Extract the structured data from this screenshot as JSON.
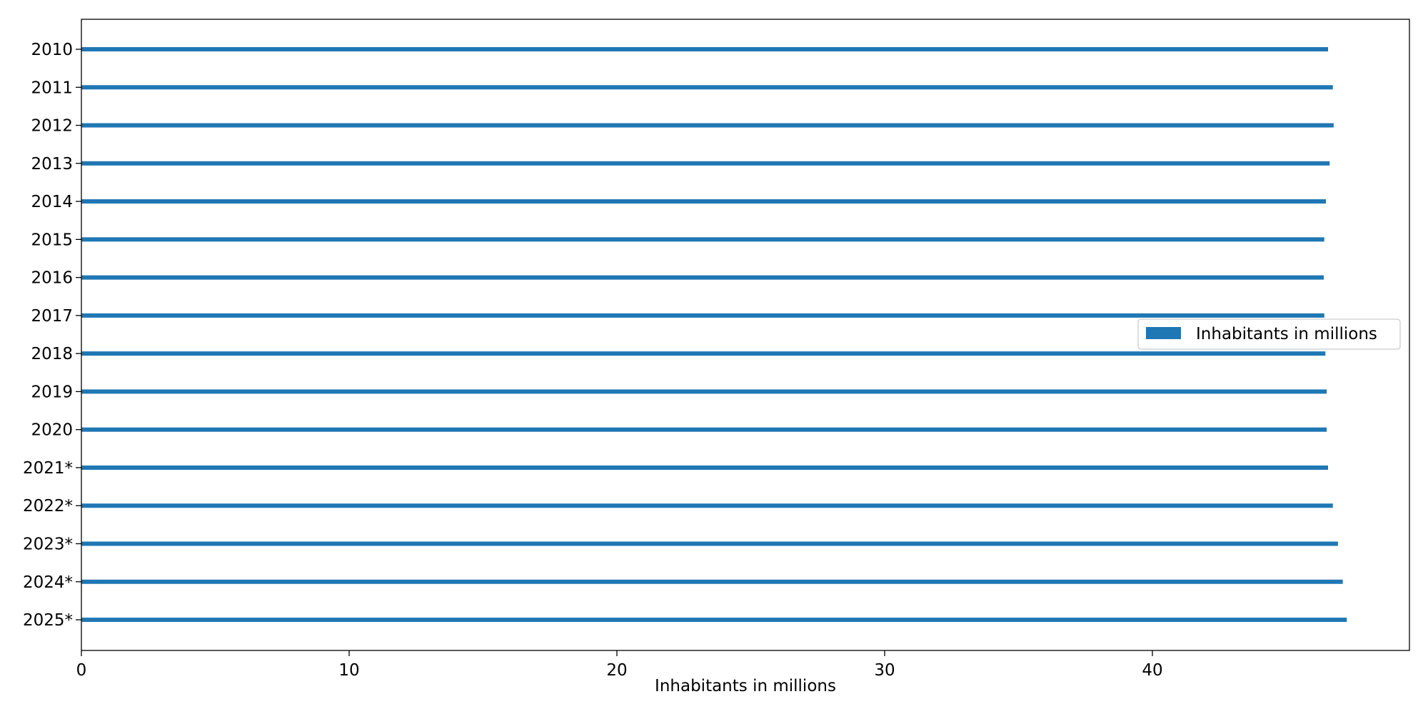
{
  "chart_data": {
    "type": "bar",
    "orientation": "horizontal",
    "title": "",
    "xlabel": "Inhabitants in millions",
    "ylabel": "",
    "xlim": [
      0,
      49.6
    ],
    "x_ticks": [
      0,
      10,
      20,
      30,
      40
    ],
    "grid": false,
    "legend": {
      "position": "center-right",
      "entries": [
        "Inhabitants in millions"
      ]
    },
    "bar_color": "#1f77b4",
    "categories": [
      "2010",
      "2011",
      "2012",
      "2013",
      "2014",
      "2015",
      "2016",
      "2017",
      "2018",
      "2019",
      "2020",
      "2021*",
      "2022*",
      "2023*",
      "2024*",
      "2025*"
    ],
    "series": [
      {
        "name": "Inhabitants in millions",
        "values": [
          46.56,
          46.74,
          46.77,
          46.62,
          46.48,
          46.42,
          46.4,
          46.42,
          46.46,
          46.51,
          46.51,
          46.56,
          46.74,
          46.93,
          47.11,
          47.26
        ]
      }
    ]
  }
}
